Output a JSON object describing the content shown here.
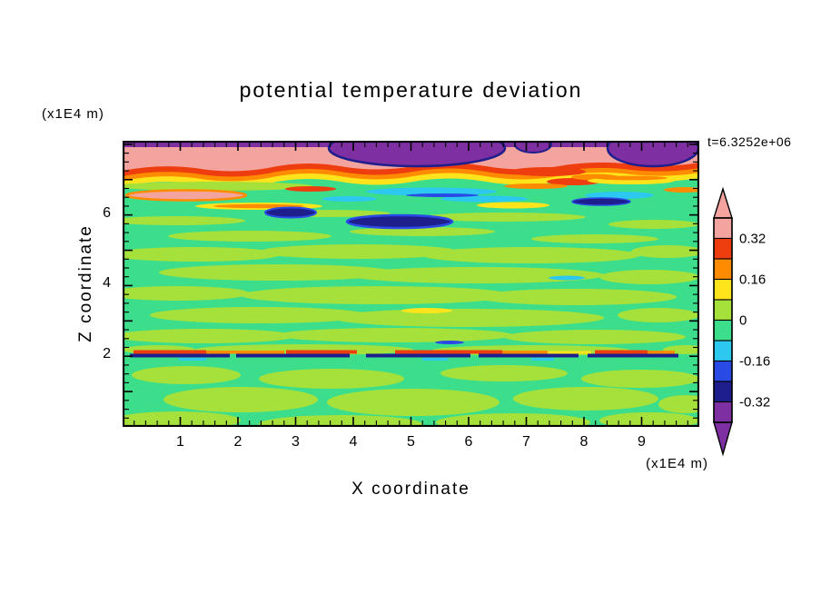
{
  "figure": {
    "background": "#FFFFFF",
    "frame_color": "#000000",
    "text_color": "#000000"
  },
  "chart_data": {
    "type": "heatmap",
    "title": "potential temperature deviation",
    "xlabel": "X coordinate",
    "ylabel": "Z coordinate",
    "x_unit_label": "(x1E4 m)",
    "y_unit_label": "(x1E4 m)",
    "time_annotation": "t=6.3252e+06",
    "x_ticks": [
      "1",
      "2",
      "3",
      "4",
      "5",
      "6",
      "7",
      "8",
      "9"
    ],
    "y_ticks": [
      "2",
      "4",
      "6"
    ],
    "xlim": [
      0,
      10
    ],
    "ylim": [
      0,
      8.1
    ],
    "grid": false,
    "legend_position": "right-colorbar",
    "colorbar": {
      "position": "right",
      "labels": [
        {
          "text": "0.32",
          "boundary_index": 1
        },
        {
          "text": "0.16",
          "boundary_index": 3
        },
        {
          "text": "0",
          "boundary_index": 5
        },
        {
          "text": "-0.16",
          "boundary_index": 7
        },
        {
          "text": "-0.32",
          "boundary_index": 9
        }
      ],
      "levels_top_to_bottom": [
        0.4,
        0.32,
        0.24,
        0.16,
        0.08,
        0,
        -0.08,
        -0.16,
        -0.24,
        -0.32,
        -0.4
      ],
      "segment_colors_top_to_bottom": [
        "#F4A49E",
        "#EE3D0F",
        "#FF8C00",
        "#FFE41C",
        "#A6E03A",
        "#3CDE8C",
        "#2CC8F0",
        "#2A4AE6",
        "#1E1E8C",
        "#7E2FA2"
      ]
    },
    "palette": {
      "salmon": "#F4A49E",
      "red": "#EE3D0F",
      "orange": "#FF8C00",
      "yellow": "#FFE41C",
      "ygreen": "#A6E03A",
      "green": "#3CDE8C",
      "cyan": "#2CC8F0",
      "blue": "#2A4AE6",
      "navy": "#1E1E8C",
      "purple": "#7E2FA2"
    },
    "field_features": [
      "strong stable top layer z~7-8: wide positive (salmon/red/orange) band with negative (purple/navy) pockets, purple strip along top edge",
      "large purple pocket centered near x~5 at top, second purple pocket near x~9, small one near x~7.1",
      "thin pink lens with orange rim near x~0-2, z~6.4; navy lenses near x~2.9 z~6 and x~4-5.6 z~5.8; cyan streaks near x~4-7 z~6.5",
      "sharp interface at z~2: thin alternating red/orange streaks over navy/blue streaks across full width",
      "interior z~2-7 near zero: green background with horizontal yellow-green streaks, occasional yellow/cyan dashes",
      "convective layer below z~2: swirling near-zero green / yellow-green anomalies"
    ]
  }
}
